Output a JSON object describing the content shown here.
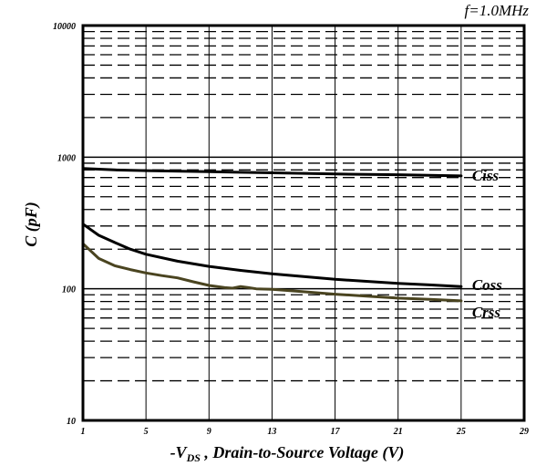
{
  "chart_data": {
    "type": "line",
    "annotation": "f=1.0MHz",
    "xlabel_parts": {
      "prefix": "-V",
      "subscript": "DS",
      "suffix": " , Drain-to-Source Voltage (V)"
    },
    "ylabel": "C (pF)",
    "xlim": [
      1,
      29
    ],
    "ylim": [
      10,
      10000
    ],
    "yscale": "log",
    "grid": true,
    "x_ticks": [
      "1",
      "5",
      "9",
      "13",
      "17",
      "21",
      "25",
      "29"
    ],
    "y_ticks": [
      "10",
      "100",
      "1000",
      "10000"
    ],
    "series": [
      {
        "name": "Ciss",
        "color": "#000000",
        "points": [
          [
            1,
            820
          ],
          [
            3,
            800
          ],
          [
            5,
            790
          ],
          [
            9,
            775
          ],
          [
            13,
            760
          ],
          [
            17,
            745
          ],
          [
            21,
            735
          ],
          [
            25,
            720
          ]
        ]
      },
      {
        "name": "Coss",
        "color": "#000000",
        "points": [
          [
            1,
            310
          ],
          [
            2,
            255
          ],
          [
            3,
            225
          ],
          [
            4,
            200
          ],
          [
            5,
            183
          ],
          [
            7,
            162
          ],
          [
            9,
            148
          ],
          [
            11,
            138
          ],
          [
            13,
            130
          ],
          [
            15,
            124
          ],
          [
            17,
            118
          ],
          [
            19,
            114
          ],
          [
            21,
            110
          ],
          [
            23,
            107
          ],
          [
            25,
            104
          ]
        ]
      },
      {
        "name": "Crss",
        "color": "#4a4420",
        "points": [
          [
            1,
            220
          ],
          [
            2,
            170
          ],
          [
            3,
            150
          ],
          [
            4,
            140
          ],
          [
            5,
            132
          ],
          [
            6,
            126
          ],
          [
            7,
            121
          ],
          [
            8,
            113
          ],
          [
            9,
            106
          ],
          [
            10,
            102
          ],
          [
            10.5,
            101
          ],
          [
            11,
            104
          ],
          [
            11.5,
            102
          ],
          [
            12,
            100
          ],
          [
            13,
            99
          ],
          [
            15,
            95
          ],
          [
            17,
            91
          ],
          [
            19,
            88
          ],
          [
            21,
            85
          ],
          [
            23,
            83
          ],
          [
            25,
            81
          ]
        ]
      }
    ]
  }
}
